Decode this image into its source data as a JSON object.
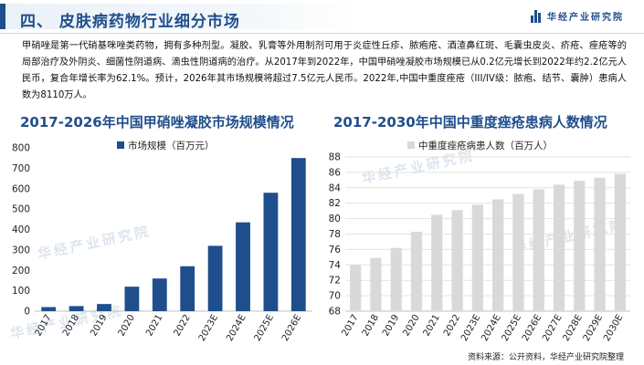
{
  "header": {
    "title": "四、 皮肤病药物行业细分市场",
    "brand": "华经产业研究院"
  },
  "intro_text": "甲硝唑是第一代硝基咪唑类药物，拥有多种剂型。凝胶、乳膏等外用制剂可用于炎症性丘疹、脓疱疮、酒渣鼻红斑、毛囊虫皮炎、疥疮、痤疮等的局部治疗及外阴炎、细菌性阴道病、滴虫性阴道病的治疗。从2017年到2022年，中国甲硝唑凝胶市场规模已从0.2亿元增长到2022年约2.2亿元人民币，复合年增长率为62.1%。预计，2026年其市场规模将超过7.5亿元人民币。2022年,中国中重度痤疮（III/IV级：脓疱、结节、囊肿）患病人数为8110万人。",
  "watermark": "华经产业研究院",
  "source": "资料来源：公开资料，华经产业研究院整理",
  "colors": {
    "bar_left": "#1f4e8c",
    "bar_right": "#d9d9d9",
    "accent": "#1f4e8c"
  },
  "chart_data": [
    {
      "type": "bar",
      "title": "2017-2026年中国甲硝唑凝胶市场规模情况",
      "legend": "市场规模（百万元）",
      "legend_position": "top",
      "categories": [
        "2017",
        "2018",
        "2019",
        "2020",
        "2021",
        "2022",
        "2023E",
        "2024E",
        "2025E",
        "2026E"
      ],
      "values": [
        20,
        25,
        35,
        120,
        160,
        220,
        320,
        435,
        580,
        750
      ],
      "ylim": [
        0,
        800
      ],
      "yticks": [
        0,
        100,
        200,
        300,
        400,
        500,
        600,
        700,
        800
      ],
      "grid": false
    },
    {
      "type": "bar",
      "title": "2017-2030年中国中重度痤疮患病人数情况",
      "legend": "中重度痤疮病患人数（百万人）",
      "legend_position": "top",
      "categories": [
        "2017",
        "2018",
        "2019",
        "2020",
        "2021",
        "2022",
        "2023E",
        "2024E",
        "2025E",
        "2026E",
        "2027E",
        "2028E",
        "2029E",
        "2030E"
      ],
      "values": [
        74.0,
        74.9,
        76.2,
        78.3,
        80.5,
        81.1,
        81.8,
        82.5,
        83.2,
        83.8,
        84.4,
        84.9,
        85.3,
        85.8
      ],
      "ylim": [
        68,
        88
      ],
      "yticks": [
        68,
        70,
        72,
        74,
        76,
        78,
        80,
        82,
        84,
        86,
        88
      ],
      "grid": true
    }
  ]
}
